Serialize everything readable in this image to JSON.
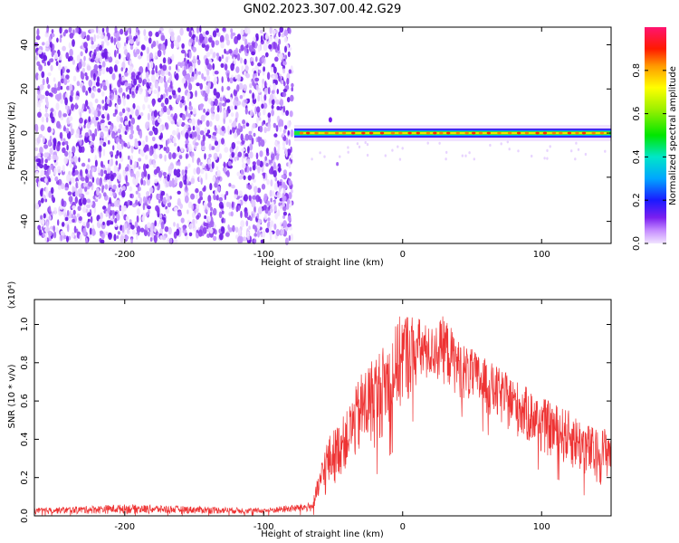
{
  "title": "GN02.2023.307.00.42.G29",
  "chart_data": [
    {
      "type": "heatmap",
      "xlabel": "Height of straight line (km)",
      "ylabel": "Frequency (Hz)",
      "xlim": [
        -265,
        150
      ],
      "ylim": [
        -50,
        48
      ],
      "xticks": [
        -200,
        -100,
        0,
        100
      ],
      "yticks": [
        -40,
        -20,
        0,
        20,
        40
      ],
      "colorbar": {
        "label": "Normalized spectral amplitude",
        "ticks": [
          0.0,
          0.2,
          0.4,
          0.6,
          0.8
        ],
        "range": [
          0,
          1
        ]
      },
      "regions": [
        {
          "name": "noise",
          "x_range": [
            -265,
            -78
          ],
          "y_range": [
            -50,
            48
          ],
          "amplitude": "low (0.0-0.1)"
        },
        {
          "name": "signal line",
          "x_range": [
            -78,
            150
          ],
          "frequency": 0,
          "amplitude": "high (0.4-1.0)"
        }
      ]
    },
    {
      "type": "line",
      "xlabel": "Height of straight line (km)",
      "ylabel": "SNR (10 * v/v)",
      "y_multiplier": "(x10⁴)",
      "xlim": [
        -265,
        150
      ],
      "ylim": [
        0,
        1.13
      ],
      "xticks": [
        -200,
        -100,
        0,
        100
      ],
      "yticks": [
        0.0,
        0.2,
        0.4,
        0.6,
        0.8,
        1.0
      ],
      "color": "#ee3333",
      "series_envelope": {
        "x": [
          -265,
          -200,
          -150,
          -100,
          -65,
          -55,
          -40,
          -30,
          -20,
          -10,
          0,
          10,
          20,
          30,
          40,
          60,
          80,
          100,
          120,
          140,
          150
        ],
        "y_low": [
          0.01,
          0.01,
          0.01,
          0.01,
          0.02,
          0.1,
          0.25,
          0.3,
          0.35,
          0.45,
          0.55,
          0.65,
          0.7,
          0.68,
          0.62,
          0.52,
          0.42,
          0.32,
          0.25,
          0.15,
          0.2
        ],
        "y_high": [
          0.04,
          0.06,
          0.05,
          0.04,
          0.07,
          0.4,
          0.55,
          0.75,
          0.85,
          0.92,
          1.08,
          1.05,
          0.98,
          1.05,
          0.92,
          0.82,
          0.72,
          0.62,
          0.55,
          0.45,
          0.48
        ]
      }
    }
  ]
}
